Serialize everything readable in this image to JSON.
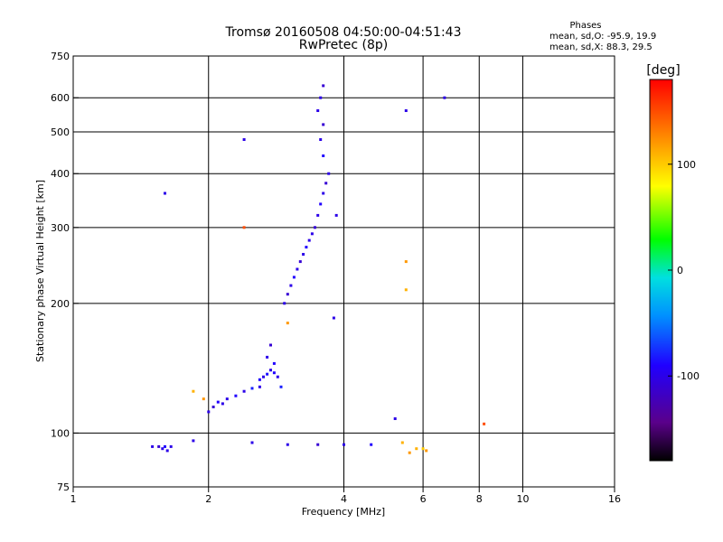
{
  "chart_data": {
    "type": "scatter",
    "title": "Tromsø 20160508 04:50:00-04:51:43",
    "subtitle": "RwPretec (8p)",
    "xlabel": "Frequency [MHz]",
    "ylabel": "Stationary phase Virtual Height [km]",
    "x_scale": "log",
    "y_scale": "log",
    "xlim": [
      1,
      16
    ],
    "ylim": [
      75,
      750
    ],
    "x_ticks": [
      1,
      2,
      4,
      6,
      8,
      10,
      16
    ],
    "x_tick_labels": [
      "1",
      "2",
      "4",
      "6",
      "8",
      "10",
      "16"
    ],
    "y_ticks": [
      75,
      100,
      200,
      300,
      400,
      500,
      600,
      750
    ],
    "y_tick_labels": [
      "75",
      "100",
      "200",
      "300",
      "400",
      "500",
      "600",
      "750"
    ],
    "grid": true,
    "phase_info": {
      "title": "Phases",
      "line1": "mean, sd,O: -95.9, 19.9",
      "line2": "mean, sd,X:  88.3, 29.5"
    },
    "colorbar": {
      "label": "[deg]",
      "range": [
        -180,
        180
      ],
      "ticks": [
        100,
        0,
        -100
      ],
      "tick_labels": [
        "100",
        "0",
        "-100"
      ]
    },
    "series": [
      {
        "points": [
          [
            1.5,
            93,
            -100
          ],
          [
            1.55,
            93,
            -110
          ],
          [
            1.58,
            92,
            -100
          ],
          [
            1.6,
            93,
            -90
          ],
          [
            1.62,
            91,
            -100
          ],
          [
            1.65,
            93,
            -100
          ],
          [
            1.85,
            96,
            -100
          ],
          [
            2.0,
            112,
            -100
          ],
          [
            2.05,
            115,
            -110
          ],
          [
            2.1,
            118,
            -90
          ],
          [
            2.15,
            117,
            -100
          ],
          [
            2.2,
            120,
            -100
          ],
          [
            2.3,
            122,
            -90
          ],
          [
            2.4,
            125,
            -100
          ],
          [
            2.5,
            127,
            -80
          ],
          [
            2.6,
            128,
            -100
          ],
          [
            2.6,
            133,
            -90
          ],
          [
            2.65,
            135,
            -100
          ],
          [
            2.7,
            137,
            -85
          ],
          [
            2.75,
            140,
            -100
          ],
          [
            2.8,
            138,
            -90
          ],
          [
            2.85,
            135,
            -100
          ],
          [
            2.9,
            128,
            -80
          ],
          [
            2.7,
            150,
            -100
          ],
          [
            2.75,
            160,
            -110
          ],
          [
            2.8,
            145,
            -90
          ],
          [
            2.95,
            200,
            -100
          ],
          [
            3.0,
            210,
            -110
          ],
          [
            3.05,
            220,
            -100
          ],
          [
            3.1,
            230,
            -90
          ],
          [
            3.15,
            240,
            -100
          ],
          [
            3.2,
            250,
            -110
          ],
          [
            3.25,
            260,
            -100
          ],
          [
            3.3,
            270,
            -90
          ],
          [
            3.35,
            280,
            -100
          ],
          [
            3.4,
            290,
            -100
          ],
          [
            3.45,
            300,
            -110
          ],
          [
            3.5,
            320,
            -100
          ],
          [
            3.55,
            340,
            -90
          ],
          [
            3.6,
            360,
            -100
          ],
          [
            3.65,
            380,
            -110
          ],
          [
            3.7,
            400,
            -100
          ],
          [
            3.6,
            440,
            -90
          ],
          [
            3.55,
            480,
            -100
          ],
          [
            3.6,
            520,
            -110
          ],
          [
            3.5,
            560,
            -100
          ],
          [
            3.55,
            600,
            -100
          ],
          [
            3.6,
            640,
            -110
          ],
          [
            2.5,
            95,
            -100
          ],
          [
            3.0,
            94,
            -100
          ],
          [
            3.5,
            94,
            -110
          ],
          [
            4.0,
            94,
            -100
          ],
          [
            4.6,
            94,
            -90
          ],
          [
            5.2,
            108,
            -100
          ],
          [
            5.5,
            560,
            -100
          ],
          [
            6.7,
            600,
            -100
          ],
          [
            2.4,
            480,
            -100
          ],
          [
            1.6,
            360,
            -100
          ],
          [
            3.85,
            320,
            -100
          ],
          [
            3.8,
            185,
            -100
          ]
        ]
      },
      {
        "points": [
          [
            2.4,
            300,
            150
          ],
          [
            1.95,
            120,
            120
          ],
          [
            1.85,
            125,
            110
          ],
          [
            3.0,
            180,
            120
          ],
          [
            5.5,
            250,
            120
          ],
          [
            5.5,
            215,
            110
          ],
          [
            5.6,
            90,
            120
          ],
          [
            5.8,
            92,
            110
          ],
          [
            6.0,
            92,
            100
          ],
          [
            6.1,
            91,
            120
          ],
          [
            8.2,
            105,
            150
          ],
          [
            5.4,
            95,
            110
          ]
        ]
      }
    ]
  }
}
